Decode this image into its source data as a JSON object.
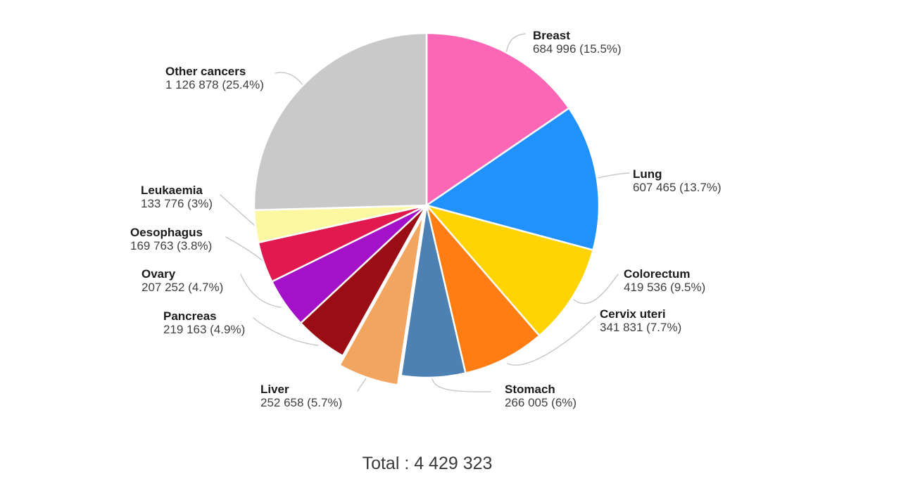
{
  "chart_data": {
    "type": "pie",
    "title": "",
    "legend_position": "none",
    "labels_style": "external with leader lines",
    "direction": "clockwise",
    "start_angle_deg": 0,
    "total_value": 4429323,
    "total_label": "Total : 4 429 323",
    "slices": [
      {
        "key": "breast",
        "name": "Breast",
        "value": 684996,
        "pct": 15.5,
        "value_text": "684 996 (15.5%)",
        "color": "#FC67B5",
        "exploded": false
      },
      {
        "key": "lung",
        "name": "Lung",
        "value": 607465,
        "pct": 13.7,
        "value_text": "607 465 (13.7%)",
        "color": "#2191FB",
        "exploded": false
      },
      {
        "key": "colorectum",
        "name": "Colorectum",
        "value": 419536,
        "pct": 9.5,
        "value_text": "419 536 (9.5%)",
        "color": "#FFD402",
        "exploded": false
      },
      {
        "key": "cervix-uteri",
        "name": "Cervix uteri",
        "value": 341831,
        "pct": 7.7,
        "value_text": "341 831 (7.7%)",
        "color": "#FF7D12",
        "exploded": false
      },
      {
        "key": "stomach",
        "name": "Stomach",
        "value": 266005,
        "pct": 6,
        "value_text": "266 005 (6%)",
        "color": "#4D81B3",
        "exploded": false
      },
      {
        "key": "liver",
        "name": "Liver",
        "value": 252658,
        "pct": 5.7,
        "value_text": "252 658 (5.7%)",
        "color": "#F1A55F",
        "exploded": true
      },
      {
        "key": "pancreas",
        "name": "Pancreas",
        "value": 219163,
        "pct": 4.9,
        "value_text": "219 163 (4.9%)",
        "color": "#9B0D15",
        "exploded": false
      },
      {
        "key": "ovary",
        "name": "Ovary",
        "value": 207252,
        "pct": 4.7,
        "value_text": "207 252 (4.7%)",
        "color": "#A312C9",
        "exploded": false
      },
      {
        "key": "oesophagus",
        "name": "Oesophagus",
        "value": 169763,
        "pct": 3.8,
        "value_text": "169 763 (3.8%)",
        "color": "#E2194E",
        "exploded": false
      },
      {
        "key": "leukaemia",
        "name": "Leukaemia",
        "value": 133776,
        "pct": 3,
        "value_text": "133 776 (3%)",
        "color": "#FCF8A2",
        "exploded": false
      },
      {
        "key": "other-cancers",
        "name": "Other cancers",
        "value": 1126878,
        "pct": 25.4,
        "value_text": "1 126 878 (25.4%)",
        "color": "#C9C9C9",
        "exploded": false
      }
    ],
    "colors": {
      "background": "#FFFFFF",
      "slice_separator": "#FFFFFF",
      "leader_line": "#C6C6C6",
      "label_name": "#1B1B1B",
      "label_value": "#3F3F3F",
      "total_text": "#3A3A3A"
    }
  }
}
